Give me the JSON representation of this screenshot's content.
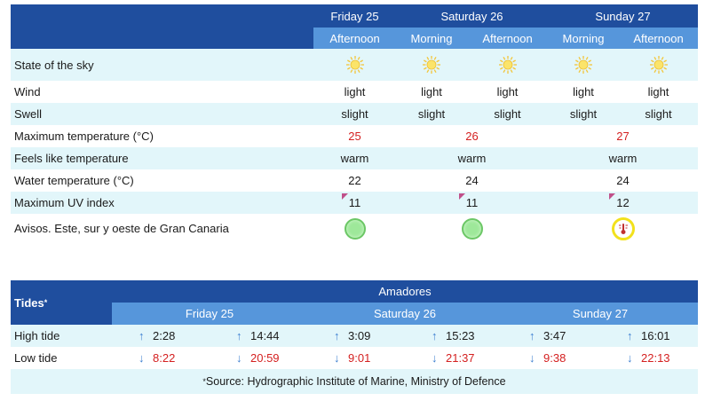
{
  "weather": {
    "days": [
      "Friday 25",
      "Saturday 26",
      "Sunday 27"
    ],
    "periods": [
      "Afternoon",
      "Morning",
      "Afternoon",
      "Morning",
      "Afternoon"
    ],
    "rows": {
      "sky": {
        "label": "State of the sky",
        "icon": "sun-icon"
      },
      "wind": {
        "label": "Wind",
        "values": [
          "light",
          "light",
          "light",
          "light",
          "light"
        ]
      },
      "swell": {
        "label": "Swell",
        "values": [
          "slight",
          "slight",
          "slight",
          "slight",
          "slight"
        ]
      },
      "max_temp": {
        "label": "Maximum temperature (°C)",
        "values": [
          "25",
          "26",
          "27"
        ]
      },
      "feels": {
        "label": "Feels like temperature",
        "values": [
          "warm",
          "warm",
          "warm"
        ]
      },
      "water": {
        "label": "Water temperature (°C)",
        "values": [
          "22",
          "24",
          "24"
        ]
      },
      "uv": {
        "label": "Maximum UV index",
        "values": [
          "11",
          "11",
          "12"
        ]
      },
      "warnings": {
        "label": "Avisos. Este, sur y oeste de Gran Canaria",
        "levels": [
          "green",
          "green",
          "yellow"
        ]
      }
    }
  },
  "tides": {
    "title": "Tides",
    "title_sup": "*",
    "location": "Amadores",
    "days": [
      "Friday 25",
      "Saturday 26",
      "Sunday 27"
    ],
    "high": {
      "label": "High tide",
      "times": [
        "2:28",
        "14:44",
        "3:09",
        "15:23",
        "3:47",
        "16:01"
      ]
    },
    "low": {
      "label": "Low tide",
      "times": [
        "8:22",
        "20:59",
        "9:01",
        "21:37",
        "9:38",
        "22:13"
      ]
    },
    "source_sup": "*",
    "source": "Source: Hydrographic Institute of Marine, Ministry of Defence"
  },
  "colors": {
    "header_dark": "#1f4e9e",
    "header_mid": "#5696db",
    "row_tint": "#e2f6fa",
    "temp_red": "#d42020",
    "warning_green": "#9ee89a",
    "warning_yellow": "#f2e11c"
  }
}
